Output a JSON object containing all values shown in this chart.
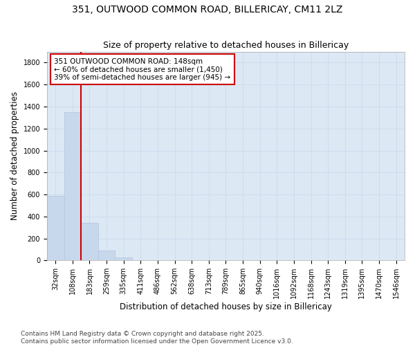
{
  "title_line1": "351, OUTWOOD COMMON ROAD, BILLERICAY, CM11 2LZ",
  "title_line2": "Size of property relative to detached houses in Billericay",
  "xlabel": "Distribution of detached houses by size in Billericay",
  "ylabel": "Number of detached properties",
  "categories": [
    "32sqm",
    "108sqm",
    "183sqm",
    "259sqm",
    "335sqm",
    "411sqm",
    "486sqm",
    "562sqm",
    "638sqm",
    "713sqm",
    "789sqm",
    "865sqm",
    "940sqm",
    "1016sqm",
    "1092sqm",
    "1168sqm",
    "1243sqm",
    "1319sqm",
    "1395sqm",
    "1470sqm",
    "1546sqm"
  ],
  "values": [
    590,
    1350,
    340,
    90,
    25,
    5,
    0,
    0,
    0,
    0,
    0,
    0,
    0,
    0,
    0,
    0,
    0,
    0,
    0,
    0,
    0
  ],
  "bar_color": "#c8d8ec",
  "bar_edge_color": "#b0c4de",
  "vline_color": "#cc0000",
  "vline_x": 1.5,
  "annotation_text": "351 OUTWOOD COMMON ROAD: 148sqm\n← 60% of detached houses are smaller (1,450)\n39% of semi-detached houses are larger (945) →",
  "annotation_box_color": "#cc0000",
  "annotation_bg_color": "#ffffff",
  "ylim": [
    0,
    1900
  ],
  "yticks": [
    0,
    200,
    400,
    600,
    800,
    1000,
    1200,
    1400,
    1600,
    1800
  ],
  "grid_color": "#c8d8ec",
  "plot_bg_color": "#dce8f4",
  "fig_bg_color": "#ffffff",
  "footer_line1": "Contains HM Land Registry data © Crown copyright and database right 2025.",
  "footer_line2": "Contains public sector information licensed under the Open Government Licence v3.0.",
  "title_fontsize": 10,
  "subtitle_fontsize": 9,
  "axis_label_fontsize": 8.5,
  "tick_fontsize": 7,
  "annotation_fontsize": 7.5,
  "footer_fontsize": 6.5
}
